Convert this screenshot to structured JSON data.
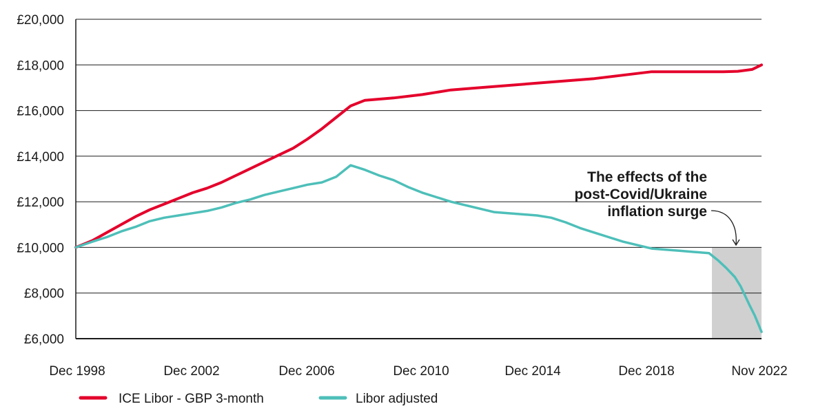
{
  "chart_data": {
    "type": "line",
    "title": "",
    "xlabel": "",
    "ylabel": "",
    "y_ticks": [
      "£6,000",
      "£8,000",
      "£10,000",
      "£12,000",
      "£14,000",
      "£16,000",
      "£18,000",
      "£20,000"
    ],
    "x_ticks": [
      "Dec 1998",
      "Dec 2002",
      "Dec 2006",
      "Dec 2010",
      "Dec 2014",
      "Dec 2018",
      "Nov 2022"
    ],
    "xlim": [
      1998.92,
      2022.83
    ],
    "ylim": [
      6000,
      20000
    ],
    "grid": "horizontal",
    "legend_position": "bottom",
    "series": [
      {
        "name": "ICE Libor - GBP 3-month",
        "color": "#e4002b",
        "x": [
          1998.92,
          1999.5,
          2000.0,
          2000.5,
          2001.0,
          2001.5,
          2002.0,
          2002.5,
          2003.0,
          2003.5,
          2004.0,
          2004.5,
          2005.0,
          2005.5,
          2006.0,
          2006.5,
          2007.0,
          2007.5,
          2008.0,
          2008.5,
          2009.0,
          2010.0,
          2011.0,
          2012.0,
          2013.0,
          2014.0,
          2015.0,
          2016.0,
          2017.0,
          2018.0,
          2019.0,
          2020.0,
          2021.0,
          2021.5,
          2022.0,
          2022.5,
          2022.83
        ],
        "y": [
          10000,
          10300,
          10650,
          11000,
          11350,
          11650,
          11900,
          12150,
          12400,
          12600,
          12850,
          13150,
          13450,
          13750,
          14050,
          14350,
          14750,
          15200,
          15700,
          16200,
          16450,
          16550,
          16700,
          16900,
          17000,
          17100,
          17200,
          17300,
          17400,
          17550,
          17700,
          17700,
          17700,
          17700,
          17720,
          17800,
          18000
        ]
      },
      {
        "name": "Libor adjusted",
        "color": "#4ebfb9",
        "x": [
          1998.92,
          1999.5,
          2000.0,
          2000.5,
          2001.0,
          2001.5,
          2002.0,
          2002.5,
          2003.0,
          2003.5,
          2004.0,
          2004.5,
          2005.0,
          2005.5,
          2006.0,
          2006.5,
          2007.0,
          2007.5,
          2008.0,
          2008.5,
          2009.0,
          2009.5,
          2010.0,
          2010.5,
          2011.0,
          2011.5,
          2012.0,
          2012.5,
          2013.0,
          2013.5,
          2014.0,
          2014.5,
          2015.0,
          2015.5,
          2016.0,
          2016.5,
          2017.0,
          2017.5,
          2018.0,
          2018.5,
          2019.0,
          2019.5,
          2020.0,
          2020.5,
          2021.0,
          2021.3,
          2021.6,
          2021.9,
          2022.1,
          2022.4,
          2022.6,
          2022.83
        ],
        "y": [
          10000,
          10250,
          10450,
          10700,
          10900,
          11150,
          11300,
          11400,
          11500,
          11600,
          11750,
          11950,
          12100,
          12300,
          12450,
          12600,
          12750,
          12850,
          13100,
          13600,
          13400,
          13150,
          12950,
          12650,
          12400,
          12200,
          12000,
          11850,
          11700,
          11550,
          11500,
          11450,
          11400,
          11300,
          11100,
          10850,
          10650,
          10450,
          10250,
          10100,
          9950,
          9900,
          9850,
          9800,
          9750,
          9450,
          9100,
          8700,
          8300,
          7500,
          7000,
          6300
        ]
      }
    ],
    "annotation": {
      "lines": [
        "The effects of the",
        "post-Covid/Ukraine",
        "inflation surge"
      ],
      "shaded_region": {
        "x": [
          2021.1,
          2022.83
        ],
        "y": [
          6000,
          10000
        ]
      }
    },
    "colors": {
      "grid": "#1a1a1a",
      "text": "#1a1a1a",
      "shade": "#d0d0d0"
    }
  }
}
